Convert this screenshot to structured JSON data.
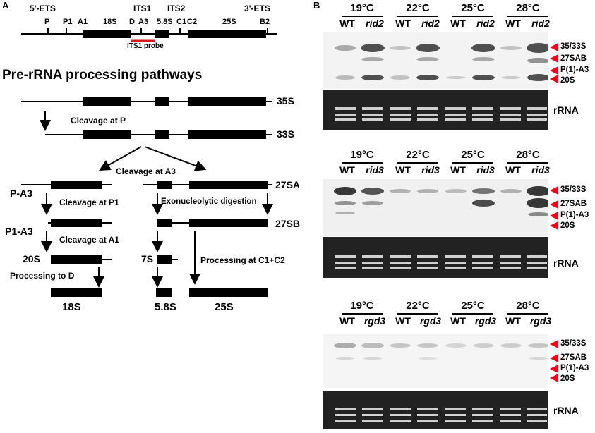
{
  "panelA": {
    "letter": "A",
    "map": {
      "labels": [
        "5'-ETS",
        "ITS1",
        "ITS2",
        "3'-ETS"
      ],
      "sites": [
        "P",
        "P1",
        "A1",
        "18S",
        "D",
        "A3",
        "5.8S",
        "C1",
        "C2",
        "25S",
        "B2"
      ],
      "probe_label": "ITS1 probe",
      "probe_color": "#d7191c"
    },
    "title": "Pre-rRNA processing pathways",
    "species": [
      "35S",
      "33S",
      "27SA",
      "27SB",
      "20S",
      "7S",
      "18S",
      "5.8S",
      "25S",
      "P-A3",
      "P1-A3"
    ],
    "steps": [
      "Cleavage at P",
      "Cleavage at A3",
      "Cleavage at P1",
      "Exonucleolytic digestion",
      "Cleavage at A1",
      "Processing at C1+C2",
      "Processing to D"
    ]
  },
  "panelB": {
    "letter": "B",
    "arrow_color": "#e8001c",
    "blots": [
      {
        "temps": [
          "19°C",
          "22°C",
          "25°C",
          "28°C"
        ],
        "lanes": [
          "WT",
          "rid2",
          "WT",
          "rid2",
          "WT",
          "rid2",
          "WT",
          "rid2"
        ],
        "bands": [
          "35/33S",
          "27SAB",
          "P(1)-A3",
          "20S"
        ],
        "control": "rRNA"
      },
      {
        "temps": [
          "19°C",
          "22°C",
          "25°C",
          "28°C"
        ],
        "lanes": [
          "WT",
          "rid3",
          "WT",
          "rid3",
          "WT",
          "rid3",
          "WT",
          "rid3"
        ],
        "bands": [
          "35/33S",
          "27SAB",
          "P(1)-A3",
          "20S"
        ],
        "control": "rRNA"
      },
      {
        "temps": [
          "19°C",
          "22°C",
          "25°C",
          "28°C"
        ],
        "lanes": [
          "WT",
          "rgd3",
          "WT",
          "rgd3",
          "WT",
          "rgd3",
          "WT",
          "rgd3"
        ],
        "bands": [
          "35/33S",
          "27SAB",
          "P(1)-A3",
          "20S"
        ],
        "control": "rRNA"
      }
    ]
  }
}
